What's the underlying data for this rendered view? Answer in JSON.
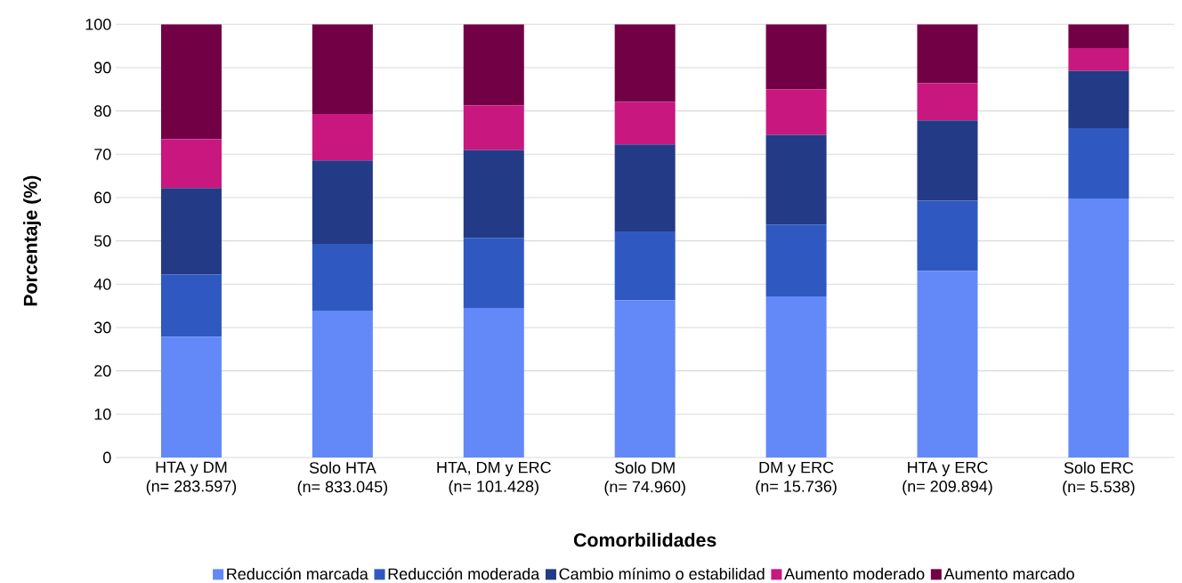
{
  "chart_data": {
    "type": "bar",
    "stacked": true,
    "xlabel": "Comorbilidades",
    "ylabel": "Porcentaje (%)",
    "categories": [
      "HTA y DM\n(n= 283.597)",
      "Solo HTA\n(n= 833.045)",
      "HTA, DM y ERC\n(n= 101.428)",
      "Solo DM\n(n= 74.960)",
      "DM y ERC\n(n= 15.736)",
      "HTA y ERC\n(n= 209.894)",
      "Solo ERC\n(n= 5.538)"
    ],
    "series": [
      {
        "name": "Reducción marcada",
        "color": "#6389f8",
        "values": [
          27.9,
          33.9,
          34.5,
          36.3,
          37.2,
          43.1,
          59.8
        ]
      },
      {
        "name": "Reducción moderada",
        "color": "#2f59c0",
        "values": [
          14.4,
          15.4,
          16.2,
          15.9,
          16.6,
          16.2,
          16.2
        ]
      },
      {
        "name": "Cambio mínimo o estabilidad",
        "color": "#233a86",
        "values": [
          19.9,
          19.3,
          20.3,
          20.1,
          20.7,
          18.5,
          13.3
        ]
      },
      {
        "name": "Aumento moderado",
        "color": "#c8177f",
        "values": [
          11.3,
          10.7,
          10.3,
          9.8,
          10.5,
          8.6,
          5.2
        ]
      },
      {
        "name": "Aumento marcado",
        "color": "#720045",
        "values": [
          26.5,
          20.7,
          18.7,
          17.9,
          15.0,
          13.6,
          5.5
        ]
      }
    ],
    "ylim": [
      0,
      100
    ],
    "yticks": [
      0,
      10,
      20,
      30,
      40,
      50,
      60,
      70,
      80,
      90,
      100
    ],
    "grid": "y",
    "legend": "bottom"
  }
}
